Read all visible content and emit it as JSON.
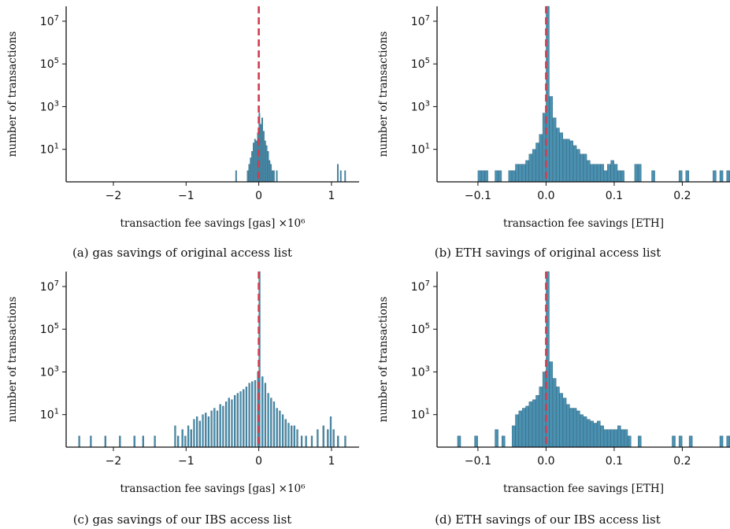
{
  "colors": {
    "bar": "#4a90b0",
    "bar_edge": "#2b5f78",
    "zero_line": "#d23c50"
  },
  "chart_data": [
    {
      "id": "a",
      "type": "bar",
      "caption": "(a) gas savings of original access list",
      "xlabel": "transaction fee savings [gas]",
      "xlabel_multiplier": "×10⁶",
      "ylabel": "number of transactions",
      "xscale": "linear",
      "yscale": "log",
      "xlim": [
        -2.65,
        1.38
      ],
      "ylim": [
        0.3,
        50000000
      ],
      "xticks": [
        -2,
        -1,
        0,
        1
      ],
      "xticklabels": [
        "−2",
        "−1",
        "0",
        "1"
      ],
      "yticks": [
        10,
        1000,
        100000,
        10000000
      ],
      "yticklabels": [
        {
          "base": "10",
          "exp": "1"
        },
        {
          "base": "10",
          "exp": "3"
        },
        {
          "base": "10",
          "exp": "5"
        },
        {
          "base": "10",
          "exp": "7"
        }
      ],
      "bin_width": 0.016,
      "reference_line_x": 0,
      "bins": [
        [
          -0.32,
          1
        ],
        [
          -0.16,
          1
        ],
        [
          -0.14,
          2
        ],
        [
          -0.12,
          4
        ],
        [
          -0.1,
          8
        ],
        [
          -0.08,
          20
        ],
        [
          -0.06,
          30
        ],
        [
          -0.04,
          25
        ],
        [
          -0.02,
          60
        ],
        [
          0.0,
          500
        ],
        [
          0.02,
          150
        ],
        [
          0.04,
          300
        ],
        [
          0.06,
          70
        ],
        [
          0.08,
          25
        ],
        [
          0.1,
          15
        ],
        [
          0.12,
          8
        ],
        [
          0.14,
          3
        ],
        [
          0.16,
          2
        ],
        [
          0.18,
          1
        ],
        [
          0.2,
          1
        ],
        [
          0.24,
          1
        ],
        [
          1.08,
          2
        ],
        [
          1.12,
          1
        ],
        [
          1.18,
          1
        ]
      ]
    },
    {
      "id": "b",
      "type": "bar",
      "caption": "(b) ETH savings of original access list",
      "xlabel": "transaction fee savings [ETH]",
      "ylabel": "number of transactions",
      "xscale": "linear",
      "yscale": "log",
      "xlim": [
        -0.16,
        0.27
      ],
      "ylim": [
        0.3,
        50000000
      ],
      "xticks": [
        -0.1,
        0.0,
        0.1,
        0.2
      ],
      "xticklabels": [
        "−0.1",
        "0.0",
        "0.1",
        "0.2"
      ],
      "yticks": [
        10,
        1000,
        100000,
        10000000
      ],
      "yticklabels": [
        {
          "base": "10",
          "exp": "1"
        },
        {
          "base": "10",
          "exp": "3"
        },
        {
          "base": "10",
          "exp": "5"
        },
        {
          "base": "10",
          "exp": "7"
        }
      ],
      "bin_width": 0.0047,
      "reference_line_x": 0,
      "bins": [
        [
          -0.1,
          1
        ],
        [
          -0.095,
          1
        ],
        [
          -0.09,
          1
        ],
        [
          -0.075,
          1
        ],
        [
          -0.07,
          1
        ],
        [
          -0.055,
          1
        ],
        [
          -0.05,
          1
        ],
        [
          -0.045,
          2
        ],
        [
          -0.04,
          2
        ],
        [
          -0.035,
          2
        ],
        [
          -0.03,
          3
        ],
        [
          -0.025,
          6
        ],
        [
          -0.02,
          10
        ],
        [
          -0.015,
          20
        ],
        [
          -0.01,
          50
        ],
        [
          -0.005,
          500
        ],
        [
          0.0,
          50000000
        ],
        [
          0.005,
          3000
        ],
        [
          0.01,
          300
        ],
        [
          0.015,
          100
        ],
        [
          0.02,
          60
        ],
        [
          0.025,
          30
        ],
        [
          0.03,
          30
        ],
        [
          0.035,
          25
        ],
        [
          0.04,
          15
        ],
        [
          0.045,
          10
        ],
        [
          0.05,
          6
        ],
        [
          0.055,
          6
        ],
        [
          0.06,
          3
        ],
        [
          0.065,
          2
        ],
        [
          0.07,
          2
        ],
        [
          0.075,
          2
        ],
        [
          0.08,
          2
        ],
        [
          0.085,
          1
        ],
        [
          0.09,
          2
        ],
        [
          0.095,
          3
        ],
        [
          0.1,
          2
        ],
        [
          0.105,
          1
        ],
        [
          0.11,
          1
        ],
        [
          0.13,
          2
        ],
        [
          0.135,
          2
        ],
        [
          0.155,
          1
        ],
        [
          0.195,
          1
        ],
        [
          0.205,
          1
        ],
        [
          0.245,
          1
        ],
        [
          0.255,
          1
        ],
        [
          0.265,
          1
        ]
      ]
    },
    {
      "id": "c",
      "type": "bar",
      "caption": "(c) gas savings of our IBS access list",
      "xlabel": "transaction fee savings [gas]",
      "xlabel_multiplier": "×10⁶",
      "ylabel": "number of transactions",
      "xscale": "linear",
      "yscale": "log",
      "xlim": [
        -2.65,
        1.38
      ],
      "ylim": [
        0.3,
        50000000
      ],
      "xticks": [
        -2,
        -1,
        0,
        1
      ],
      "xticklabels": [
        "−2",
        "−1",
        "0",
        "1"
      ],
      "yticks": [
        10,
        1000,
        100000,
        10000000
      ],
      "yticklabels": [
        {
          "base": "10",
          "exp": "1"
        },
        {
          "base": "10",
          "exp": "3"
        },
        {
          "base": "10",
          "exp": "5"
        },
        {
          "base": "10",
          "exp": "7"
        }
      ],
      "bin_width": 0.02,
      "reference_line_x": 0,
      "bins": [
        [
          -2.48,
          1
        ],
        [
          -2.32,
          1
        ],
        [
          -2.12,
          1
        ],
        [
          -1.92,
          1
        ],
        [
          -1.72,
          1
        ],
        [
          -1.6,
          1
        ],
        [
          -1.44,
          1
        ],
        [
          -1.16,
          3
        ],
        [
          -1.12,
          1
        ],
        [
          -1.06,
          2
        ],
        [
          -1.02,
          1
        ],
        [
          -0.98,
          3
        ],
        [
          -0.94,
          2
        ],
        [
          -0.9,
          6
        ],
        [
          -0.86,
          8
        ],
        [
          -0.82,
          5
        ],
        [
          -0.78,
          10
        ],
        [
          -0.74,
          12
        ],
        [
          -0.7,
          8
        ],
        [
          -0.66,
          15
        ],
        [
          -0.62,
          20
        ],
        [
          -0.58,
          15
        ],
        [
          -0.54,
          30
        ],
        [
          -0.5,
          25
        ],
        [
          -0.46,
          40
        ],
        [
          -0.42,
          60
        ],
        [
          -0.38,
          50
        ],
        [
          -0.34,
          80
        ],
        [
          -0.3,
          100
        ],
        [
          -0.26,
          120
        ],
        [
          -0.22,
          150
        ],
        [
          -0.18,
          200
        ],
        [
          -0.14,
          300
        ],
        [
          -0.1,
          350
        ],
        [
          -0.06,
          400
        ],
        [
          -0.02,
          1000
        ],
        [
          0.0,
          50000000
        ],
        [
          0.04,
          600
        ],
        [
          0.08,
          300
        ],
        [
          0.12,
          100
        ],
        [
          0.16,
          60
        ],
        [
          0.2,
          40
        ],
        [
          0.24,
          20
        ],
        [
          0.28,
          15
        ],
        [
          0.32,
          10
        ],
        [
          0.36,
          6
        ],
        [
          0.4,
          4
        ],
        [
          0.44,
          3
        ],
        [
          0.48,
          3
        ],
        [
          0.52,
          2
        ],
        [
          0.58,
          1
        ],
        [
          0.64,
          1
        ],
        [
          0.72,
          1
        ],
        [
          0.8,
          2
        ],
        [
          0.88,
          3
        ],
        [
          0.94,
          2
        ],
        [
          0.98,
          8
        ],
        [
          1.02,
          2
        ],
        [
          1.08,
          1
        ],
        [
          1.18,
          1
        ]
      ]
    },
    {
      "id": "d",
      "type": "bar",
      "caption": "(d) ETH savings of our IBS access list",
      "xlabel": "transaction fee savings [ETH]",
      "ylabel": "number of transactions",
      "xscale": "linear",
      "yscale": "log",
      "xlim": [
        -0.16,
        0.27
      ],
      "ylim": [
        0.3,
        50000000
      ],
      "xticks": [
        -0.1,
        0.0,
        0.1,
        0.2
      ],
      "xticklabels": [
        "−0.1",
        "0.0",
        "0.1",
        "0.2"
      ],
      "yticks": [
        10,
        1000,
        100000,
        10000000
      ],
      "yticklabels": [
        {
          "base": "10",
          "exp": "1"
        },
        {
          "base": "10",
          "exp": "3"
        },
        {
          "base": "10",
          "exp": "5"
        },
        {
          "base": "10",
          "exp": "7"
        }
      ],
      "bin_width": 0.0047,
      "reference_line_x": 0,
      "bins": [
        [
          -0.13,
          1
        ],
        [
          -0.105,
          1
        ],
        [
          -0.075,
          2
        ],
        [
          -0.065,
          1
        ],
        [
          -0.05,
          3
        ],
        [
          -0.045,
          10
        ],
        [
          -0.04,
          15
        ],
        [
          -0.035,
          20
        ],
        [
          -0.03,
          25
        ],
        [
          -0.025,
          40
        ],
        [
          -0.02,
          50
        ],
        [
          -0.015,
          80
        ],
        [
          -0.01,
          200
        ],
        [
          -0.005,
          1000
        ],
        [
          0.0,
          50000000
        ],
        [
          0.005,
          3000
        ],
        [
          0.01,
          500
        ],
        [
          0.015,
          200
        ],
        [
          0.02,
          100
        ],
        [
          0.025,
          60
        ],
        [
          0.03,
          30
        ],
        [
          0.035,
          20
        ],
        [
          0.04,
          20
        ],
        [
          0.045,
          15
        ],
        [
          0.05,
          10
        ],
        [
          0.055,
          8
        ],
        [
          0.06,
          6
        ],
        [
          0.065,
          5
        ],
        [
          0.07,
          4
        ],
        [
          0.075,
          5
        ],
        [
          0.08,
          3
        ],
        [
          0.085,
          2
        ],
        [
          0.09,
          2
        ],
        [
          0.095,
          2
        ],
        [
          0.1,
          2
        ],
        [
          0.105,
          3
        ],
        [
          0.11,
          2
        ],
        [
          0.115,
          2
        ],
        [
          0.12,
          1
        ],
        [
          0.135,
          1
        ],
        [
          0.185,
          1
        ],
        [
          0.195,
          1
        ],
        [
          0.21,
          1
        ],
        [
          0.255,
          1
        ],
        [
          0.265,
          1
        ]
      ]
    }
  ]
}
